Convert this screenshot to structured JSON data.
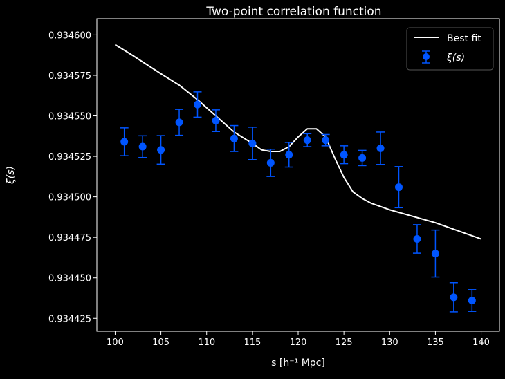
{
  "chart_data": {
    "type": "line",
    "title": "Two-point correlation function",
    "xlabel": "s [h⁻¹ Mpc]",
    "ylabel": "ξ(s)",
    "xlim": [
      98,
      142
    ],
    "ylim": [
      0.934417,
      0.93461
    ],
    "xticks": [
      100,
      105,
      110,
      115,
      120,
      125,
      130,
      135,
      140
    ],
    "yticks": [
      0.934425,
      0.93445,
      0.934475,
      0.9345,
      0.934525,
      0.93455,
      0.934575,
      0.9346
    ],
    "ytick_labels": [
      "0.934425",
      "0.934450",
      "0.934475",
      "0.934500",
      "0.934525",
      "0.934550",
      "0.934575",
      "0.934600"
    ],
    "grid": false,
    "legend_placement": "top-right",
    "background": "#000000",
    "series": [
      {
        "name": "Best fit",
        "kind": "line",
        "color": "#ffffff",
        "x": [
          100,
          102,
          105,
          107,
          109,
          111,
          113,
          115,
          116,
          117,
          118,
          119,
          120,
          121,
          122,
          123,
          124,
          125,
          126,
          127,
          128,
          130,
          135,
          140
        ],
        "y": [
          0.934594,
          0.934587,
          0.934576,
          0.934569,
          0.93456,
          0.93455,
          0.93454,
          0.934533,
          0.934529,
          0.934528,
          0.934528,
          0.934531,
          0.934537,
          0.934542,
          0.934542,
          0.934537,
          0.934524,
          0.934512,
          0.934503,
          0.934499,
          0.934496,
          0.934492,
          0.934484,
          0.934474
        ]
      },
      {
        "name": "ξ(s)",
        "kind": "errorbar",
        "color": "#0055ff",
        "x": [
          101,
          103,
          105,
          107,
          109,
          111,
          113,
          115,
          117,
          119,
          121,
          123,
          125,
          127,
          129,
          131,
          133,
          135,
          137,
          139
        ],
        "y": [
          0.934534,
          0.934531,
          0.934529,
          0.934546,
          0.934557,
          0.934547,
          0.934536,
          0.934533,
          0.934521,
          0.934526,
          0.934535,
          0.934535,
          0.934526,
          0.934524,
          0.93453,
          0.934506,
          0.934474,
          0.934465,
          0.934438,
          0.934436
        ],
        "yerr": [
          8.6e-06,
          6.7e-06,
          8.8e-06,
          8e-06,
          7.8e-06,
          6.7e-06,
          8e-06,
          1e-05,
          8.4e-06,
          7.6e-06,
          4e-06,
          3.5e-06,
          5.5e-06,
          4.7e-06,
          1e-05,
          1.27e-05,
          8.8e-06,
          1.45e-05,
          9e-06,
          6.7e-06
        ]
      }
    ]
  }
}
